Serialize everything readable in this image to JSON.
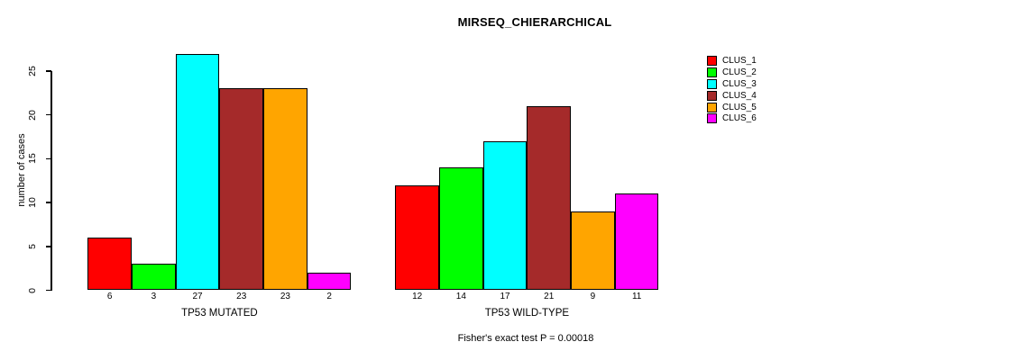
{
  "chart_data": {
    "type": "bar",
    "title": "MIRSEQ_CHIERARCHICAL",
    "ylabel": "number of cases",
    "xlabel": "",
    "ylim": [
      0,
      27
    ],
    "yticks": [
      0,
      5,
      10,
      15,
      20,
      25
    ],
    "grid": false,
    "legend_position": "top-right",
    "categories": [
      "CLUS_1",
      "CLUS_2",
      "CLUS_3",
      "CLUS_4",
      "CLUS_5",
      "CLUS_6"
    ],
    "series_colors": [
      "#FF0000",
      "#00FF00",
      "#00FFFF",
      "#A52A2A",
      "#FFA500",
      "#FF00FF"
    ],
    "groups": [
      {
        "label": "TP53 MUTATED",
        "values": [
          6,
          3,
          27,
          23,
          23,
          2
        ]
      },
      {
        "label": "TP53 WILD-TYPE",
        "values": [
          12,
          14,
          17,
          21,
          9,
          11
        ]
      }
    ],
    "legend": [
      {
        "label": "CLUS_1",
        "color": "#FF0000"
      },
      {
        "label": "CLUS_2",
        "color": "#00FF00"
      },
      {
        "label": "CLUS_3",
        "color": "#00FFFF"
      },
      {
        "label": "CLUS_4",
        "color": "#A52A2A"
      },
      {
        "label": "CLUS_5",
        "color": "#FFA500"
      },
      {
        "label": "CLUS_6",
        "color": "#FF00FF"
      }
    ],
    "annotation": "Fisher's exact test P = 0.00018"
  }
}
